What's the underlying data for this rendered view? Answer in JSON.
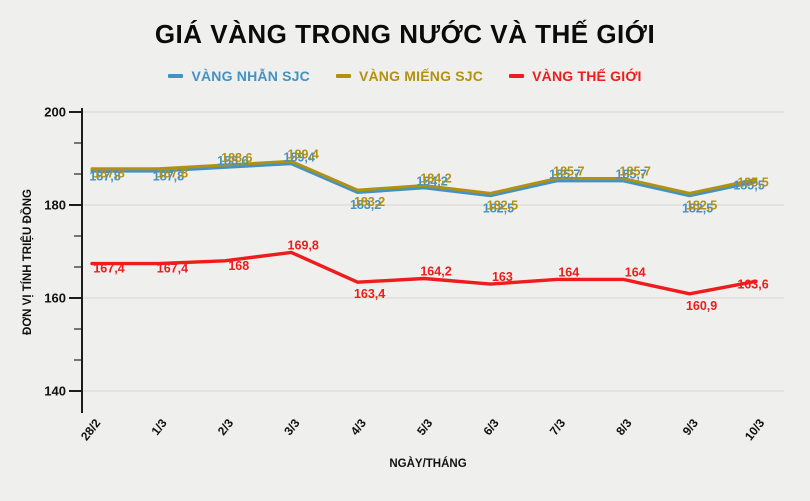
{
  "title": "GIÁ VÀNG TRONG NƯỚC VÀ THẾ GIỚI",
  "colors": {
    "background": "#efefed",
    "title": "#0b0b0b",
    "grid": "#d9d9d9",
    "axis": "#1c1c1c",
    "tick_label": "#111111",
    "blue": "#4292c4",
    "gold": "#b39110",
    "red": "#ee1c1c"
  },
  "chart_data": {
    "type": "line",
    "title": "GIÁ VÀNG TRONG NƯỚC VÀ THẾ GIỚI",
    "xlabel": "NGÀY/THÁNG",
    "ylabel": "ĐƠN VỊ TÍNH TRIỆU ĐỒNG",
    "ylim": [
      140,
      200
    ],
    "yticks": [
      200,
      180,
      160,
      140
    ],
    "minor_ticks_per_interval": 2,
    "grid": true,
    "legend_position": "top",
    "categories": [
      "28/2",
      "1/3",
      "2/3",
      "3/3",
      "4/3",
      "5/3",
      "6/3",
      "7/3",
      "8/3",
      "9/3",
      "10/3"
    ],
    "series": [
      {
        "name": "VÀNG NHẪN SJC",
        "color": "#4292c4",
        "values": [
          187.8,
          187.8,
          188.6,
          189.4,
          183.2,
          184.2,
          182.5,
          185.7,
          185.7,
          182.5,
          185.5
        ],
        "labels": [
          "187,8",
          "187,8",
          "188,6",
          "189,4",
          "183,2",
          "184,2",
          "182,5",
          "185,7",
          "185,7",
          "182,5",
          "185,5"
        ],
        "label_side": [
          "mid",
          "mid",
          "up",
          "up",
          "down",
          "up",
          "down",
          "up",
          "up",
          "down",
          "end"
        ]
      },
      {
        "name": "VÀNG MIẾNG SJC",
        "color": "#b39110",
        "values": [
          187.8,
          187.8,
          188.6,
          189.4,
          183.2,
          184.2,
          182.5,
          185.7,
          185.7,
          182.5,
          185.5
        ],
        "labels": [
          "187,8",
          "187,8",
          "188,6",
          "189,4",
          "183,2",
          "184,2",
          "182,5",
          "185,7",
          "185,7",
          "182,5",
          "185,5"
        ],
        "label_side": [
          "mid",
          "mid",
          "up",
          "up",
          "down",
          "up",
          "down",
          "up",
          "up",
          "down",
          "end"
        ]
      },
      {
        "name": "VÀNG THẾ GIỚI",
        "color": "#ee1c1c",
        "values": [
          167.4,
          167.4,
          168,
          169.8,
          163.4,
          164.2,
          163,
          164,
          164,
          160.9,
          163.6
        ],
        "labels": [
          "167,4",
          "167,4",
          "168",
          "169,8",
          "163,4",
          "164,2",
          "163",
          "164",
          "164",
          "160,9",
          "163,6"
        ],
        "label_side": [
          "mid",
          "mid",
          "mid",
          "up",
          "down",
          "up",
          "up",
          "up",
          "up",
          "down",
          "end"
        ]
      }
    ]
  }
}
